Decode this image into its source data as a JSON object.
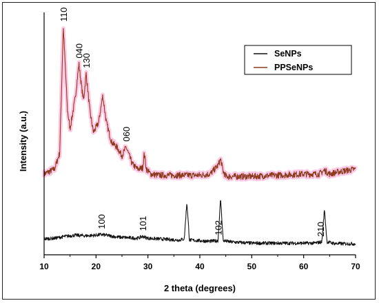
{
  "chart_data": {
    "type": "line",
    "title": "",
    "xlabel": "2 theta (degrees)",
    "ylabel": "Intensity (a.u.)",
    "xlim": [
      10,
      70
    ],
    "xticks": [
      "10",
      "20",
      "30",
      "40",
      "50",
      "60",
      "70"
    ],
    "yticks_shown": false,
    "grid": false,
    "legend_position": "top-right",
    "series": [
      {
        "name": "SeNPs",
        "color": "#111111",
        "x": [
          10,
          12,
          14,
          16,
          18,
          20,
          21,
          22,
          24,
          26,
          28,
          29,
          30,
          32,
          34,
          36,
          37,
          37.5,
          38,
          40,
          42,
          43.5,
          44,
          44.5,
          46,
          48,
          50,
          52,
          54,
          56,
          58,
          60,
          62,
          63.5,
          64,
          64.5,
          66,
          68,
          70
        ],
        "y": [
          5,
          5.5,
          7,
          8,
          7.5,
          8,
          8.5,
          8,
          6.5,
          6,
          5.5,
          7,
          5.5,
          5,
          4.5,
          4,
          5,
          35,
          4,
          3.5,
          3,
          3.5,
          38,
          3.5,
          2.5,
          2,
          1.5,
          1.5,
          1.5,
          1.5,
          1.5,
          1.5,
          1.5,
          2.5,
          29,
          2.5,
          1.2,
          1,
          1
        ]
      },
      {
        "name": "PPSeNPs",
        "color": "#8b3a1e",
        "x": [
          10,
          11,
          12,
          13,
          13.7,
          14.5,
          15,
          16,
          16.7,
          17.2,
          17.6,
          18.1,
          18.8,
          19.5,
          20.5,
          21.3,
          22,
          23,
          24,
          25,
          25.8,
          27,
          28,
          29,
          29.3,
          29.7,
          30.5,
          32,
          34,
          36,
          38,
          40,
          42,
          43.5,
          44,
          44.5,
          45,
          47,
          50,
          55,
          60,
          63,
          64,
          65,
          67,
          70
        ],
        "y": [
          58,
          60,
          62,
          75,
          178,
          110,
          95,
          120,
          148,
          130,
          118,
          140,
          110,
          92,
          100,
          122,
          100,
          84,
          80,
          73,
          80,
          66,
          62,
          63,
          75,
          62,
          58,
          57,
          57,
          57,
          57,
          57,
          58,
          65,
          70,
          60,
          56,
          56,
          56,
          57,
          58,
          58,
          61,
          58,
          60,
          62
        ]
      }
    ],
    "annotations": [
      {
        "text": "110",
        "x": 13.7,
        "series": "PPSeNPs"
      },
      {
        "text": "040",
        "x": 16.7,
        "series": "PPSeNPs"
      },
      {
        "text": "130",
        "x": 18.1,
        "series": "PPSeNPs"
      },
      {
        "text": "060",
        "x": 25.8,
        "series": "PPSeNPs"
      },
      {
        "text": "100",
        "x": 21,
        "series": "SeNPs"
      },
      {
        "text": "101",
        "x": 29,
        "series": "SeNPs"
      },
      {
        "text": "102",
        "x": 43.5,
        "series": "SeNPs"
      },
      {
        "text": "210",
        "x": 63.2,
        "series": "SeNPs"
      }
    ]
  }
}
